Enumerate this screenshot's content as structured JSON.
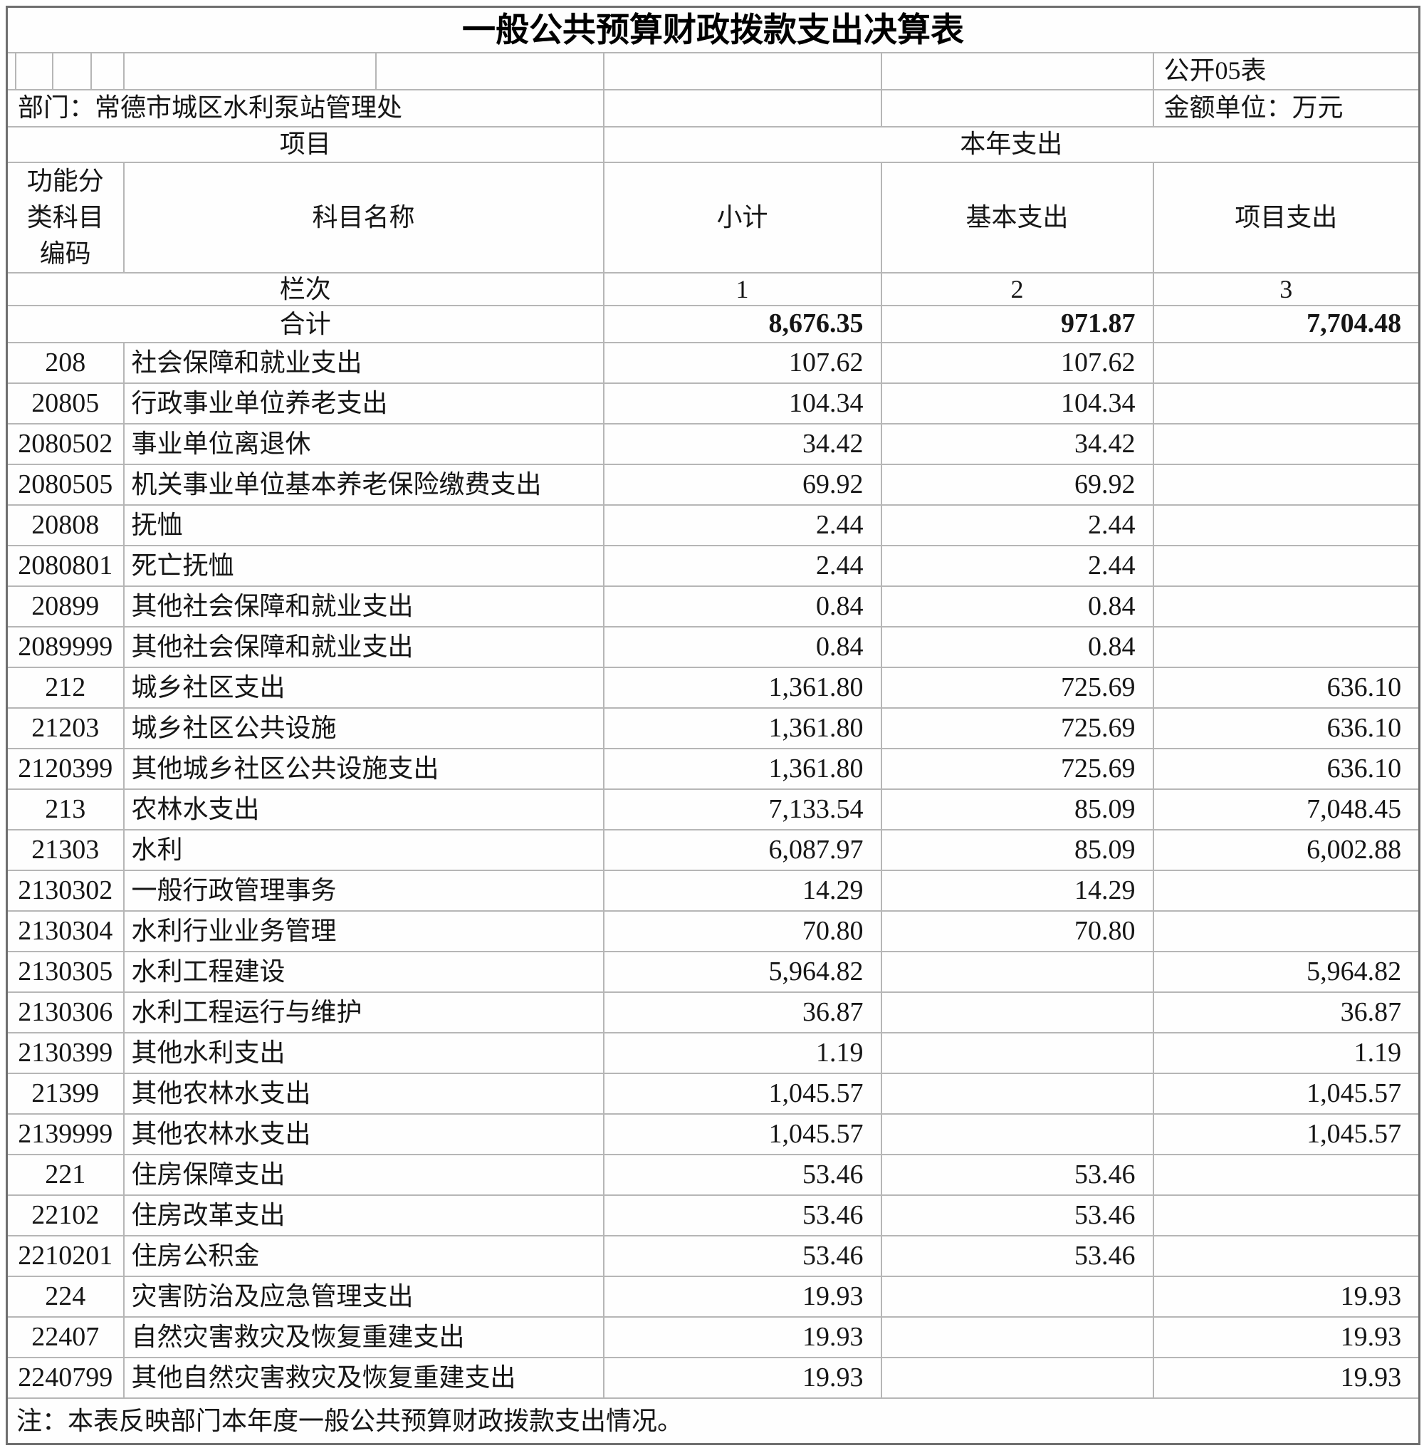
{
  "title": "一般公共预算财政拨款支出决算表",
  "meta": {
    "sheet_label": "公开05表",
    "department_label": "部门：常德市城区水利泵站管理处",
    "unit_label": "金额单位：万元"
  },
  "header": {
    "group_left": "项目",
    "group_right": "本年支出",
    "code_col": "功能分\n类科目\n编码",
    "name_col": "科目名称",
    "subtotal_col": "小计",
    "basic_col": "基本支出",
    "project_col": "项目支出",
    "lanci_label": "栏次",
    "col_numbers": [
      "1",
      "2",
      "3"
    ]
  },
  "total_row": {
    "label": "合计",
    "subtotal": "8,676.35",
    "basic": "971.87",
    "project": "7,704.48"
  },
  "rows": [
    {
      "code": "208",
      "name": "社会保障和就业支出",
      "subtotal": "107.62",
      "basic": "107.62",
      "project": ""
    },
    {
      "code": "20805",
      "name": "行政事业单位养老支出",
      "subtotal": "104.34",
      "basic": "104.34",
      "project": ""
    },
    {
      "code": "2080502",
      "name": "事业单位离退休",
      "subtotal": "34.42",
      "basic": "34.42",
      "project": ""
    },
    {
      "code": "2080505",
      "name": "机关事业单位基本养老保险缴费支出",
      "subtotal": "69.92",
      "basic": "69.92",
      "project": ""
    },
    {
      "code": "20808",
      "name": "抚恤",
      "subtotal": "2.44",
      "basic": "2.44",
      "project": ""
    },
    {
      "code": "2080801",
      "name": "死亡抚恤",
      "subtotal": "2.44",
      "basic": "2.44",
      "project": ""
    },
    {
      "code": "20899",
      "name": "其他社会保障和就业支出",
      "subtotal": "0.84",
      "basic": "0.84",
      "project": ""
    },
    {
      "code": "2089999",
      "name": "其他社会保障和就业支出",
      "subtotal": "0.84",
      "basic": "0.84",
      "project": ""
    },
    {
      "code": "212",
      "name": "城乡社区支出",
      "subtotal": "1,361.80",
      "basic": "725.69",
      "project": "636.10"
    },
    {
      "code": "21203",
      "name": "城乡社区公共设施",
      "subtotal": "1,361.80",
      "basic": "725.69",
      "project": "636.10"
    },
    {
      "code": "2120399",
      "name": "其他城乡社区公共设施支出",
      "subtotal": "1,361.80",
      "basic": "725.69",
      "project": "636.10"
    },
    {
      "code": "213",
      "name": "农林水支出",
      "subtotal": "7,133.54",
      "basic": "85.09",
      "project": "7,048.45"
    },
    {
      "code": "21303",
      "name": "水利",
      "subtotal": "6,087.97",
      "basic": "85.09",
      "project": "6,002.88"
    },
    {
      "code": "2130302",
      "name": "一般行政管理事务",
      "subtotal": "14.29",
      "basic": "14.29",
      "project": ""
    },
    {
      "code": "2130304",
      "name": "水利行业业务管理",
      "subtotal": "70.80",
      "basic": "70.80",
      "project": ""
    },
    {
      "code": "2130305",
      "name": "水利工程建设",
      "subtotal": "5,964.82",
      "basic": "",
      "project": "5,964.82"
    },
    {
      "code": "2130306",
      "name": "水利工程运行与维护",
      "subtotal": "36.87",
      "basic": "",
      "project": "36.87"
    },
    {
      "code": "2130399",
      "name": "其他水利支出",
      "subtotal": "1.19",
      "basic": "",
      "project": "1.19"
    },
    {
      "code": "21399",
      "name": "其他农林水支出",
      "subtotal": "1,045.57",
      "basic": "",
      "project": "1,045.57"
    },
    {
      "code": "2139999",
      "name": "其他农林水支出",
      "subtotal": "1,045.57",
      "basic": "",
      "project": "1,045.57"
    },
    {
      "code": "221",
      "name": "住房保障支出",
      "subtotal": "53.46",
      "basic": "53.46",
      "project": ""
    },
    {
      "code": "22102",
      "name": "住房改革支出",
      "subtotal": "53.46",
      "basic": "53.46",
      "project": ""
    },
    {
      "code": "2210201",
      "name": "住房公积金",
      "subtotal": "53.46",
      "basic": "53.46",
      "project": ""
    },
    {
      "code": "224",
      "name": "灾害防治及应急管理支出",
      "subtotal": "19.93",
      "basic": "",
      "project": "19.93"
    },
    {
      "code": "22407",
      "name": "自然灾害救灾及恢复重建支出",
      "subtotal": "19.93",
      "basic": "",
      "project": "19.93"
    },
    {
      "code": "2240799",
      "name": "其他自然灾害救灾及恢复重建支出",
      "subtotal": "19.93",
      "basic": "",
      "project": "19.93"
    }
  ],
  "note": "注：本表反映部门本年度一般公共预算财政拨款支出情况。"
}
